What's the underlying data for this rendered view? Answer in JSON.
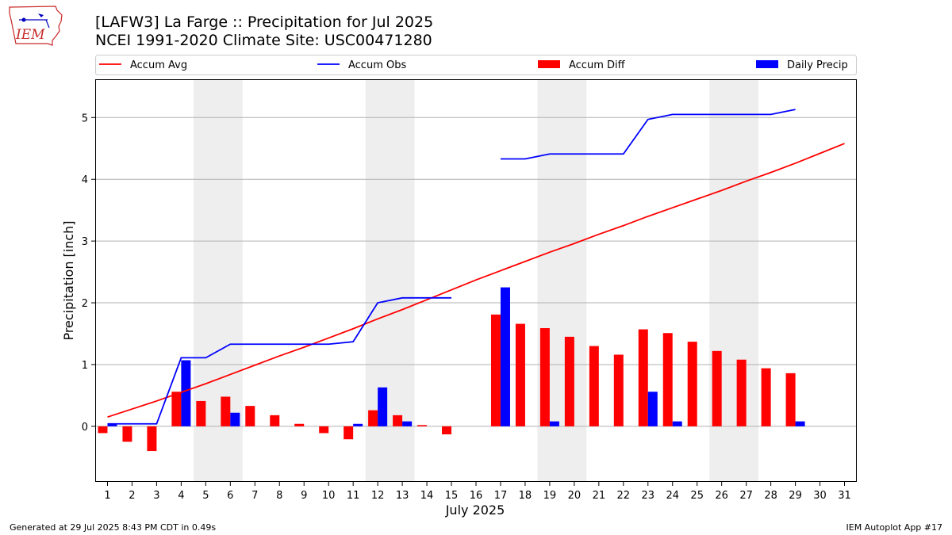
{
  "header": {
    "logo_text": "IEM",
    "title_line1": "[LAFW3] La Farge :: Precipitation for Jul 2025",
    "title_line2": "NCEI 1991-2020 Climate Site: USC00471280"
  },
  "footer": {
    "generated": "Generated at 29 Jul 2025 8:43 PM CDT in 0.49s",
    "app": "IEM Autoplot App #17"
  },
  "colors": {
    "avg": "#ff0000",
    "obs": "#0000ff",
    "diff": "#ff0000",
    "daily": "#0000ff",
    "weekend_shade": "#eeeeee",
    "grid": "#b0b0b0"
  },
  "chart_data": {
    "type": "bar",
    "xlabel": "July 2025",
    "ylabel": "Precipitation [inch]",
    "ylim": [
      -0.9,
      5.62
    ],
    "yticks": [
      0,
      1,
      2,
      3,
      4,
      5
    ],
    "grid": true,
    "legend_position": "top",
    "x": [
      1,
      2,
      3,
      4,
      5,
      6,
      7,
      8,
      9,
      10,
      11,
      12,
      13,
      14,
      15,
      16,
      17,
      18,
      19,
      20,
      21,
      22,
      23,
      24,
      25,
      26,
      27,
      28,
      29,
      30,
      31
    ],
    "weekend_bands": [
      [
        5,
        6
      ],
      [
        12,
        13
      ],
      [
        19,
        20
      ],
      [
        26,
        27
      ]
    ],
    "series": [
      {
        "name": "Accum Avg",
        "kind": "line",
        "x": [
          1,
          2,
          3,
          4,
          5,
          6,
          7,
          8,
          9,
          10,
          11,
          12,
          13,
          14,
          15,
          16,
          17,
          18,
          19,
          20,
          21,
          22,
          23,
          24,
          25,
          26,
          27,
          28,
          29,
          30,
          31
        ],
        "values": [
          0.15,
          0.28,
          0.41,
          0.55,
          0.69,
          0.84,
          0.99,
          1.14,
          1.28,
          1.43,
          1.58,
          1.74,
          1.89,
          2.05,
          2.21,
          2.37,
          2.52,
          2.67,
          2.82,
          2.96,
          3.11,
          3.25,
          3.4,
          3.54,
          3.68,
          3.82,
          3.97,
          4.11,
          4.26,
          4.42,
          4.58
        ]
      },
      {
        "name": "Accum Obs",
        "kind": "line",
        "segments": [
          {
            "x": [
              1,
              2,
              3,
              4,
              5,
              6,
              7,
              8,
              9,
              10,
              11,
              12,
              13,
              14,
              15
            ],
            "values": [
              0.04,
              0.04,
              0.04,
              1.11,
              1.11,
              1.33,
              1.33,
              1.33,
              1.33,
              1.33,
              1.37,
              2.0,
              2.08,
              2.08,
              2.08
            ]
          },
          {
            "x": [
              17,
              18,
              19,
              20,
              21,
              22,
              23,
              24,
              25,
              26,
              27,
              28,
              29
            ],
            "values": [
              4.33,
              4.33,
              4.41,
              4.41,
              4.41,
              4.41,
              4.97,
              5.05,
              5.05,
              5.05,
              5.05,
              5.05,
              5.13
            ]
          }
        ]
      },
      {
        "name": "Accum Diff",
        "kind": "bar",
        "x": [
          1,
          2,
          3,
          4,
          5,
          6,
          7,
          8,
          9,
          10,
          11,
          12,
          13,
          14,
          15,
          17,
          18,
          19,
          20,
          21,
          22,
          23,
          24,
          25,
          26,
          27,
          28,
          29
        ],
        "values": [
          -0.11,
          -0.25,
          -0.4,
          0.56,
          0.41,
          0.48,
          0.33,
          0.18,
          0.04,
          -0.11,
          -0.21,
          0.26,
          0.18,
          0.02,
          -0.13,
          1.81,
          1.66,
          1.59,
          1.45,
          1.3,
          1.16,
          1.57,
          1.51,
          1.37,
          1.22,
          1.08,
          0.94,
          0.86
        ]
      },
      {
        "name": "Daily Precip",
        "kind": "bar",
        "x": [
          1,
          2,
          3,
          4,
          5,
          6,
          7,
          8,
          9,
          10,
          11,
          12,
          13,
          14,
          15,
          17,
          18,
          19,
          20,
          21,
          22,
          23,
          24,
          25,
          26,
          27,
          28,
          29
        ],
        "values": [
          0.04,
          0,
          0,
          1.07,
          0,
          0.22,
          0,
          0,
          0,
          0,
          0.04,
          0.63,
          0.08,
          0,
          0,
          2.25,
          0,
          0.08,
          0,
          0,
          0,
          0.56,
          0.08,
          0,
          0,
          0,
          0,
          0.08
        ]
      }
    ]
  }
}
